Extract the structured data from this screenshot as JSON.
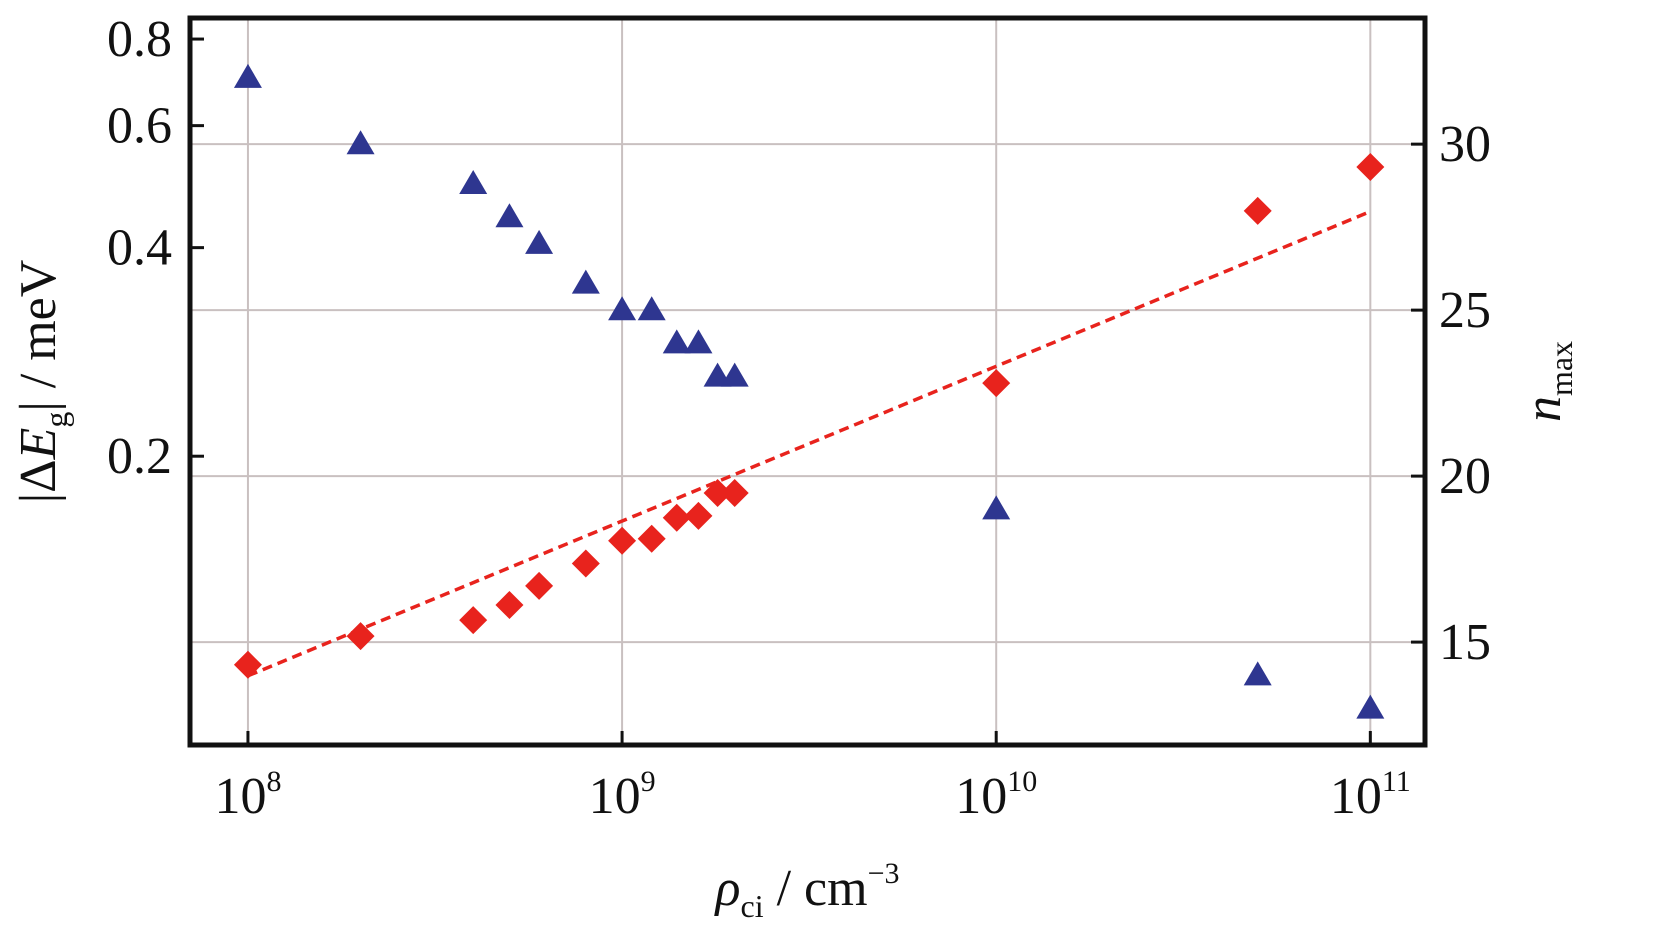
{
  "chart_data": {
    "type": "scatter",
    "title": "",
    "xlabel": {
      "symbol": "ρ",
      "sub": "ci",
      "unit": " / cm",
      "sup": "−3"
    },
    "ylabel_left": {
      "pre": "|Δ",
      "symbol": "E",
      "sub": "g",
      "post": "| / meV"
    },
    "ylabel_right": {
      "symbol": "n",
      "sub": "max"
    },
    "x_scale": "log",
    "xlim": [
      70000000.0,
      140000000000.0
    ],
    "x_ticks": [
      {
        "value": 100000000.0,
        "base": "10",
        "exp": "8"
      },
      {
        "value": 1000000000.0,
        "base": "10",
        "exp": "9"
      },
      {
        "value": 10000000000.0,
        "base": "10",
        "exp": "10"
      },
      {
        "value": 100000000000.0,
        "base": "10",
        "exp": "11"
      }
    ],
    "y_left_scale": "log",
    "y_left_lim": [
      0.0766,
      0.858
    ],
    "y_left_ticks": [
      {
        "value": 0.2,
        "label": "0.2"
      },
      {
        "value": 0.4,
        "label": "0.4"
      },
      {
        "value": 0.6,
        "label": "0.6"
      },
      {
        "value": 0.8,
        "label": "0.8"
      }
    ],
    "y_right_scale": "linear",
    "y_right_lim": [
      11.9,
      33.8
    ],
    "y_right_ticks": [
      {
        "value": 15,
        "label": "15"
      },
      {
        "value": 20,
        "label": "20"
      },
      {
        "value": 25,
        "label": "25"
      },
      {
        "value": 30,
        "label": "30"
      }
    ],
    "grid": true,
    "series": [
      {
        "axis": "left",
        "marker": "diamond",
        "color": "#e8231d",
        "x": [
          100000000.0,
          200000000.0,
          400000000.0,
          500000000.0,
          600000000.0,
          800000000.0,
          1000000000.0,
          1200000000.0,
          1400000000.0,
          1600000000.0,
          1800000000.0,
          2000000000.0,
          10000000000.0,
          50000000000.0,
          100000000000.0
        ],
        "y": [
          0.1,
          0.11,
          0.116,
          0.122,
          0.13,
          0.14,
          0.151,
          0.152,
          0.163,
          0.164,
          0.177,
          0.177,
          0.255,
          0.452,
          0.523
        ]
      },
      {
        "axis": "right",
        "marker": "triangle",
        "color": "#2e3690",
        "x": [
          100000000.0,
          200000000.0,
          400000000.0,
          500000000.0,
          600000000.0,
          800000000.0,
          1000000000.0,
          1200000000.0,
          1400000000.0,
          1600000000.0,
          1800000000.0,
          2000000000.0,
          10000000000.0,
          50000000000.0,
          100000000000.0
        ],
        "y": [
          32,
          30,
          28.8,
          27.8,
          27,
          25.8,
          25,
          25,
          24,
          24,
          23,
          23,
          19,
          14,
          13
        ]
      }
    ],
    "fit_line": {
      "axis": "left",
      "color": "#e8231d",
      "style": "dashed",
      "x": [
        100000000.0,
        100000000000.0
      ],
      "y": [
        0.0964,
        0.451
      ]
    },
    "colors": {
      "frame": "#111111",
      "grid": "#c9c0c0",
      "background": "#ffffff"
    }
  }
}
